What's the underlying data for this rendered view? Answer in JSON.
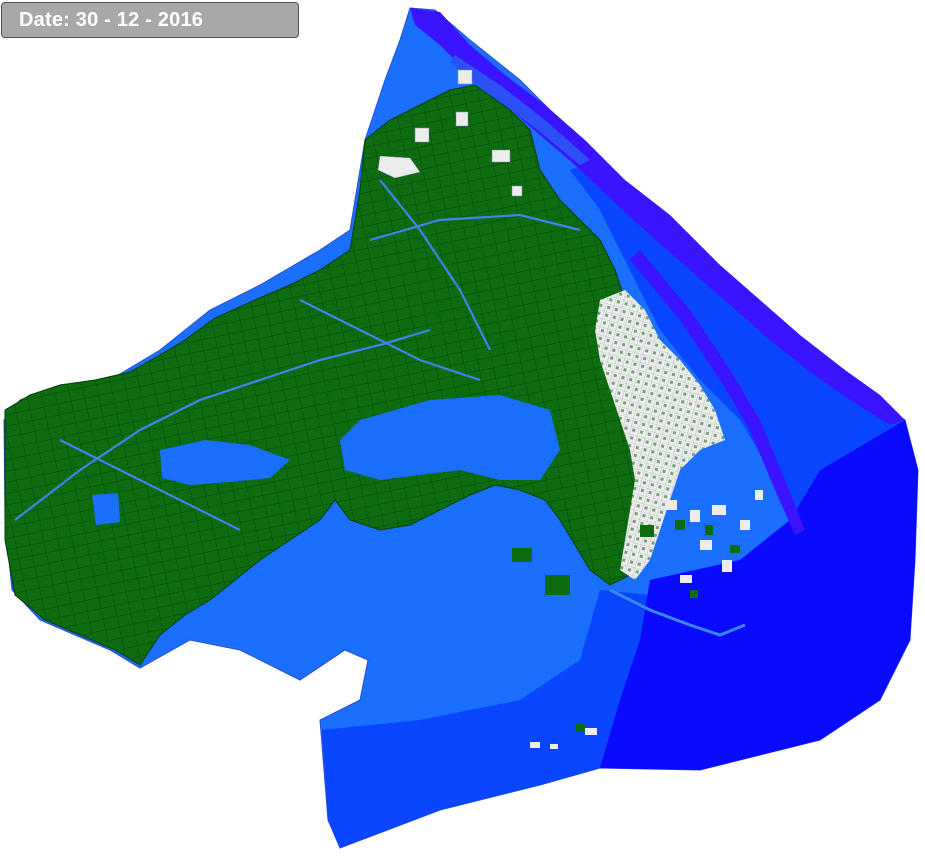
{
  "date_label": "Date: 30 - 12 - 2016",
  "colors": {
    "background": "#ffffff",
    "date_box_fill": "#a8a8a8",
    "date_box_border": "#505050",
    "date_text": "#ffffff",
    "land_light_blue": "#1a6fff",
    "water_mid_blue": "#0a45ff",
    "water_deep_blue": "#0a0aff",
    "river_violet": "#3a14ff",
    "river_channel": "#2b50f5",
    "vegetation_green": "#0d6b10",
    "vegetation_outline": "#063d07",
    "urban_white": "#ececec",
    "canal_blue": "#3d86f0"
  },
  "legend_items": []
}
